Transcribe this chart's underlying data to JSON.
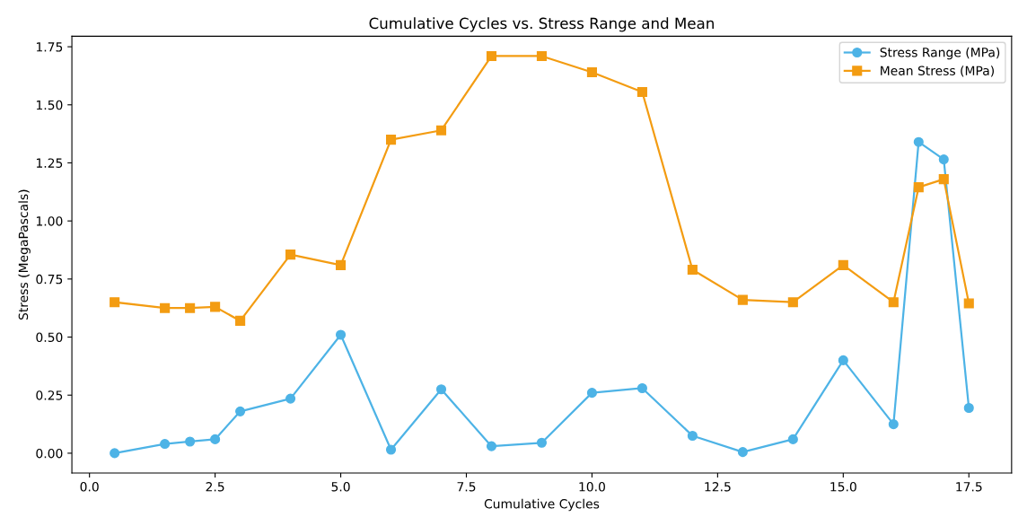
{
  "chart_data": {
    "type": "line",
    "title": "Cumulative Cycles vs. Stress Range and Mean",
    "xlabel": "Cumulative Cycles",
    "ylabel": "Stress (MegaPascals)",
    "x": [
      0.5,
      1.5,
      2,
      2.5,
      3,
      4,
      5,
      6,
      7,
      8,
      9,
      10,
      11,
      12,
      13,
      14,
      15,
      16,
      16.5,
      17,
      17.5
    ],
    "series": [
      {
        "name": "Stress Range (MPa)",
        "color": "#4db3e6",
        "marker": "circle",
        "values": [
          0.0,
          0.04,
          0.05,
          0.06,
          0.18,
          0.235,
          0.51,
          0.015,
          0.275,
          0.03,
          0.045,
          0.26,
          0.28,
          0.075,
          0.005,
          0.06,
          0.4,
          0.125,
          1.34,
          1.265,
          0.195
        ]
      },
      {
        "name": "Mean Stress (MPa)",
        "color": "#f39c12",
        "marker": "square",
        "values": [
          0.65,
          0.625,
          0.625,
          0.63,
          0.57,
          0.855,
          0.81,
          1.35,
          1.39,
          1.71,
          1.71,
          1.64,
          1.555,
          0.79,
          0.66,
          0.65,
          0.81,
          0.65,
          1.145,
          1.18,
          0.645
        ]
      }
    ],
    "xlim": [
      -0.35,
      18.35
    ],
    "xticks": [
      {
        "value": 0,
        "label": "0.0"
      },
      {
        "value": 2.5,
        "label": "2.5"
      },
      {
        "value": 5,
        "label": "5.0"
      },
      {
        "value": 7.5,
        "label": "7.5"
      },
      {
        "value": 10,
        "label": "10.0"
      },
      {
        "value": 12.5,
        "label": "12.5"
      },
      {
        "value": 15,
        "label": "15.0"
      },
      {
        "value": 17.5,
        "label": "17.5"
      }
    ],
    "ylim": [
      -0.0855,
      1.7955
    ],
    "yticks": [
      {
        "value": 0,
        "label": "0.00"
      },
      {
        "value": 0.25,
        "label": "0.25"
      },
      {
        "value": 0.5,
        "label": "0.50"
      },
      {
        "value": 0.75,
        "label": "0.75"
      },
      {
        "value": 1.0,
        "label": "1.00"
      },
      {
        "value": 1.25,
        "label": "1.25"
      },
      {
        "value": 1.5,
        "label": "1.50"
      },
      {
        "value": 1.75,
        "label": "1.75"
      }
    ],
    "grid": false,
    "legend": "top right",
    "line_style": "solid"
  }
}
